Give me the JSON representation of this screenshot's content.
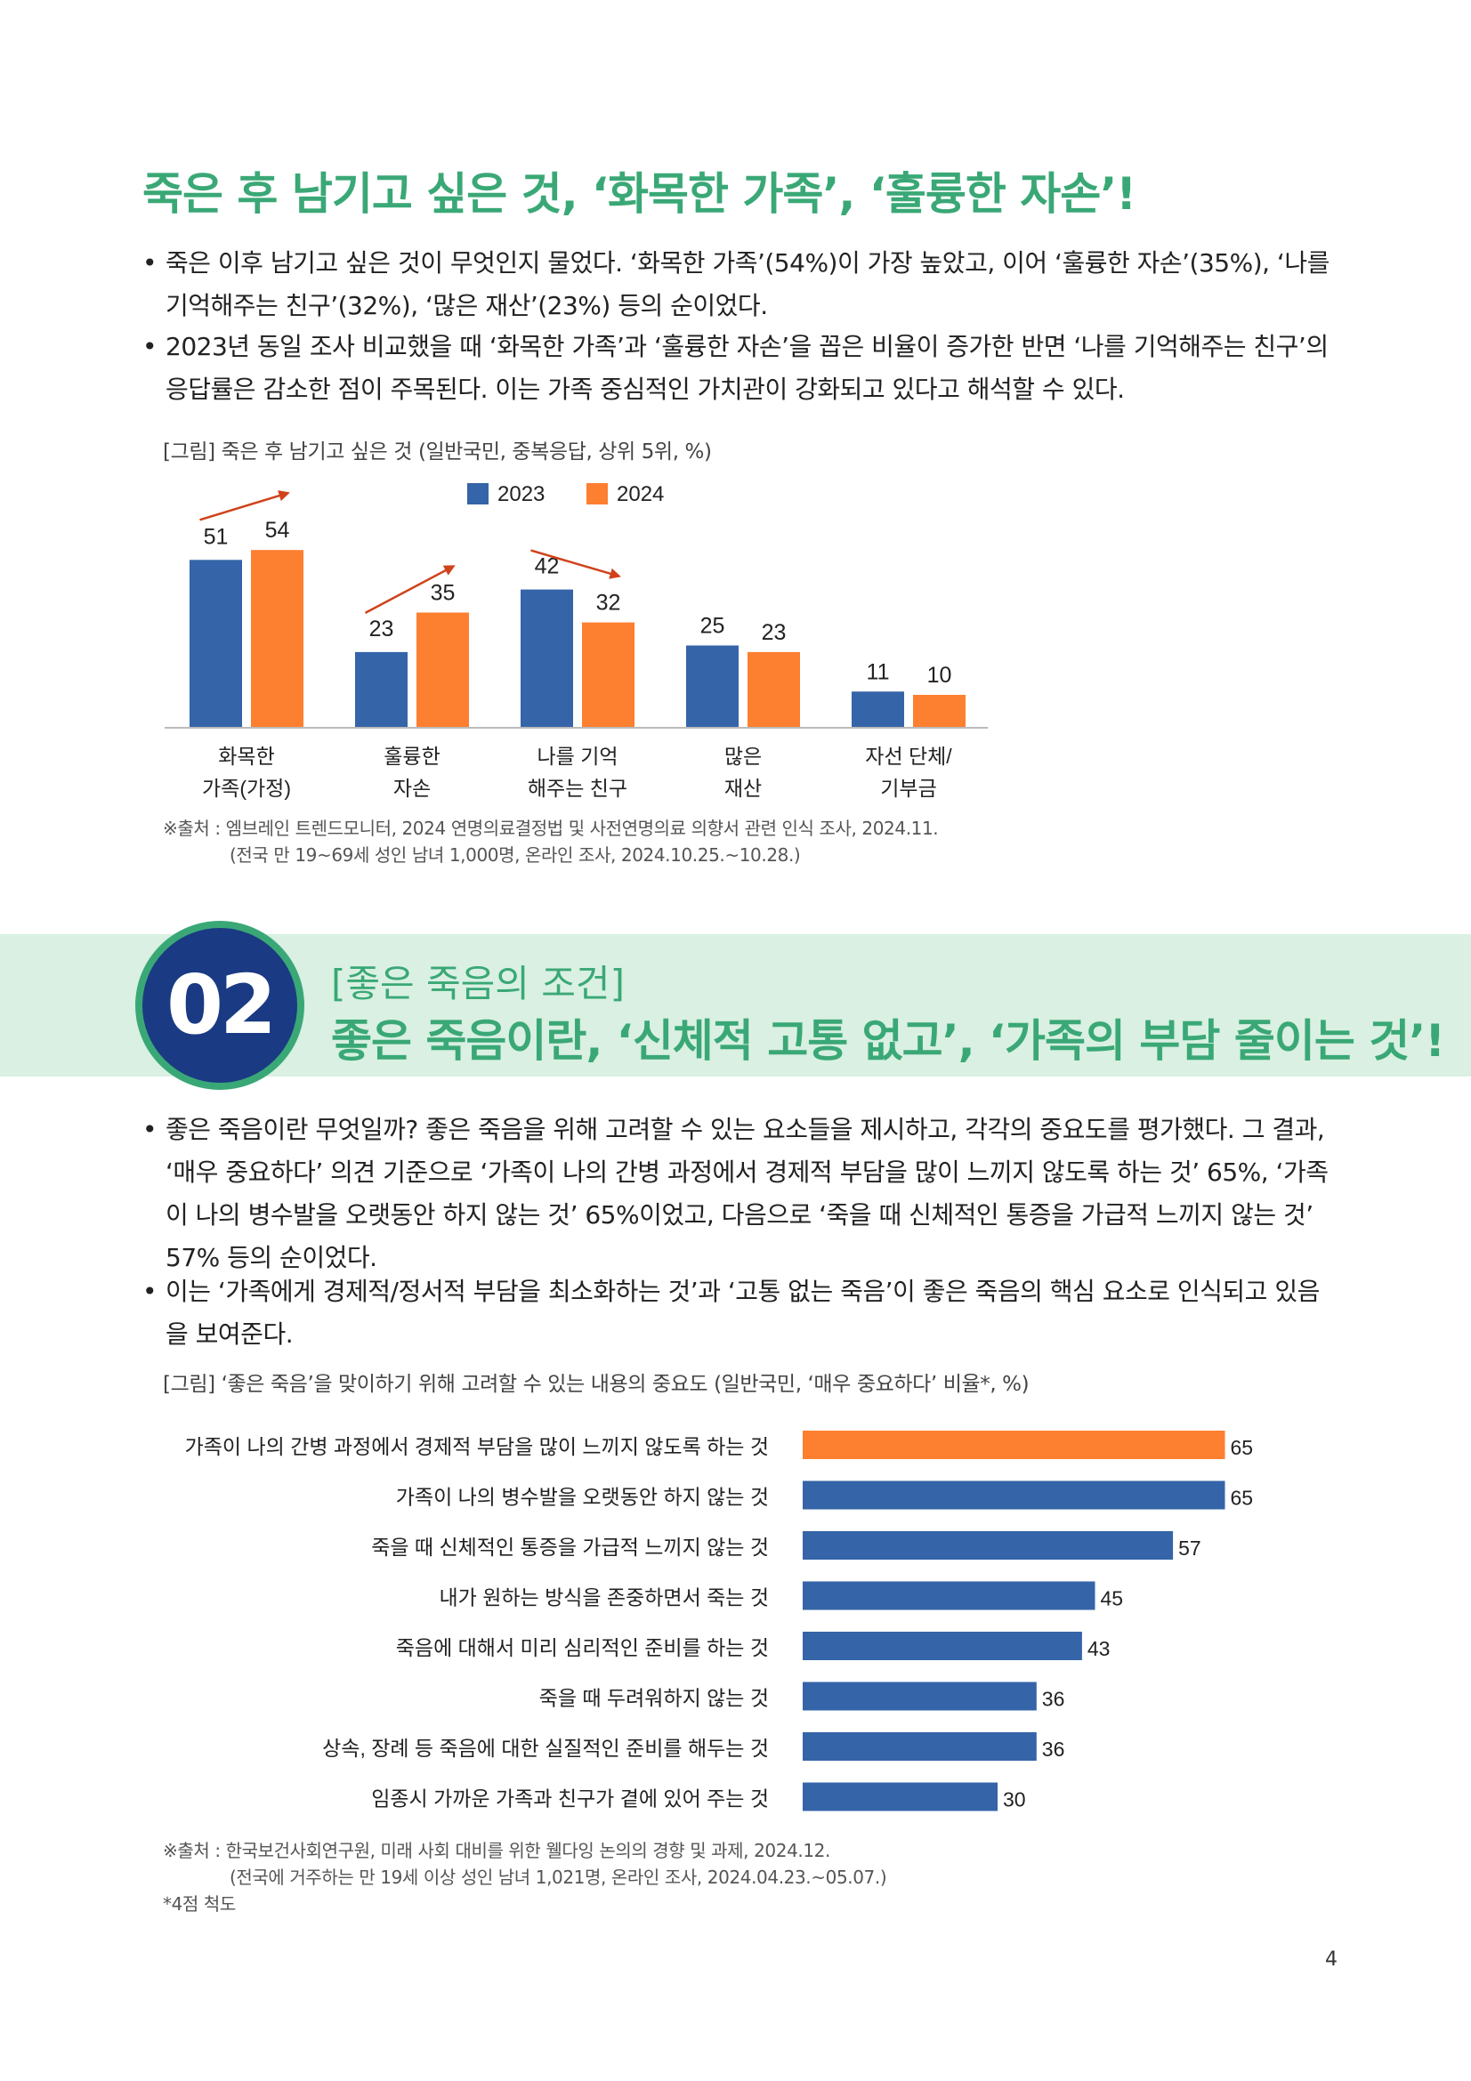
{
  "section1": {
    "heading": "죽은 후 남기고 싶은 것, ‘화목한 가족’, ‘훌륭한 자손’!",
    "bullets": [
      "죽은 이후 남기고 싶은 것이 무엇인지 물었다. ‘화목한 가족’(54%)이 가장 높았고, 이어 ‘훌륭한 자손’(35%), ‘나를 기억해주는 친구’(32%), ‘많은 재산’(23%) 등의 순이었다.",
      "2023년 동일 조사 비교했을 때 ‘화목한 가족’과 ‘훌륭한 자손’을 꼽은 비율이 증가한 반면 ‘나를 기억해주는 친구’의 응답률은 감소한 점이 주목된다. 이는 가족 중심적인 가치관이 강화되고 있다고 해석할 수 있다."
    ],
    "figure_caption": "[그림] 죽은 후 남기고 싶은 것 (일반국민, 중복응답, 상위 5위, %)",
    "source_line1": "※출처 : 엠브레인 트렌드모니터, 2024 연명의료결정법 및 사전연명의료 의향서 관련 인식 조사, 2024.11.",
    "source_line2": "(전국 만 19~69세 성인 남녀 1,000명, 온라인 조사, 2024.10.25.~10.28.)"
  },
  "section2": {
    "number": "02",
    "subtitle": "[좋은 죽음의 조건]",
    "heading": "좋은 죽음이란, ‘신체적 고통 없고’, ‘가족의 부담 줄이는 것’!",
    "bullets": [
      "좋은 죽음이란 무엇일까? 좋은 죽음을 위해 고려할 수 있는 요소들을 제시하고, 각각의 중요도를 평가했다. 그 결과, ‘매우 중요하다’ 의견 기준으로 ‘가족이 나의 간병 과정에서 경제적 부담을 많이 느끼지 않도록 하는 것’ 65%, ‘가족이 나의 병수발을 오랫동안 하지 않는 것’ 65%이었고, 다음으로 ‘죽을 때 신체적인 통증을 가급적 느끼지 않는 것’ 57% 등의 순이었다.",
      "이는 ‘가족에게 경제적/정서적 부담을 최소화하는 것’과 ‘고통 없는 죽음’이 좋은 죽음의 핵심 요소로 인식되고 있음을 보여준다."
    ],
    "figure_caption": "[그림] ‘좋은 죽음’을 맞이하기 위해 고려할 수 있는 내용의 중요도 (일반국민, ‘매우 중요하다’ 비율*, %)",
    "source_line1": "※출처 : 한국보건사회연구원, 미래 사회 대비를 위한 웰다잉 논의의 경향 및 과제, 2024.12.",
    "source_line2": "(전국에 거주하는 만 19세 이상 성인 남녀 1,021명, 온라인 조사, 2024.04.23.~05.07.)",
    "footnote": "*4점 척도"
  },
  "page_number": "4",
  "colors": {
    "blue": "#3564a8",
    "orange": "#fd7f30",
    "green": "#3aa876",
    "arrow": "#d0421b"
  },
  "chart_data": [
    {
      "type": "bar",
      "categories": [
        [
          "화목한",
          "가족(가정)"
        ],
        [
          "훌륭한",
          "자손"
        ],
        [
          "나를 기억",
          "해주는 친구"
        ],
        [
          "많은",
          "재산"
        ],
        [
          "자선 단체/",
          "기부금"
        ]
      ],
      "series": [
        {
          "name": "2023",
          "values": [
            51,
            23,
            42,
            25,
            11
          ]
        },
        {
          "name": "2024",
          "values": [
            54,
            35,
            32,
            23,
            10
          ]
        }
      ],
      "legend": "top-center",
      "ylim": [
        0,
        60
      ],
      "annotations": "arrows showing change 2023→2024 for first three categories"
    },
    {
      "type": "bar",
      "orientation": "horizontal",
      "categories": [
        "가족이 나의 간병 과정에서 경제적 부담을 많이 느끼지 않도록 하는 것",
        "가족이 나의 병수발을 오랫동안 하지 않는 것",
        "죽을 때 신체적인 통증을 가급적 느끼지 않는 것",
        "내가 원하는 방식을 존중하면서 죽는 것",
        "죽음에 대해서 미리 심리적인 준비를 하는 것",
        "죽을 때 두려워하지 않는 것",
        "상속, 장례 등 죽음에 대한 실질적인 준비를 해두는 것",
        "임종시 가까운 가족과 친구가 곁에 있어 주는 것"
      ],
      "values": [
        65,
        65,
        57,
        45,
        43,
        36,
        36,
        30
      ],
      "highlight_index": 0,
      "xlim": [
        0,
        100
      ]
    }
  ]
}
